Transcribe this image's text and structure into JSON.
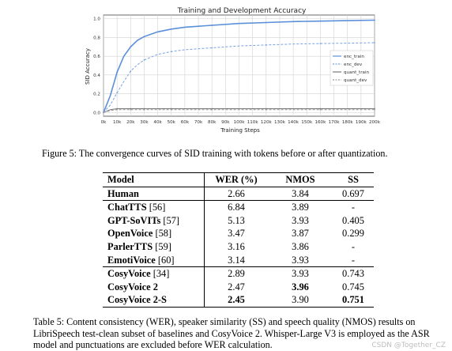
{
  "figure": {
    "caption": "Figure 5: The convergence curves of SID training with tokens before or after quantization."
  },
  "chart_data": {
    "type": "line",
    "title": "Training and Development Accuracy",
    "xlabel": "Training Steps",
    "ylabel": "SID Accuracy",
    "xlim": [
      0,
      200000
    ],
    "ylim": [
      -0.04,
      1.04
    ],
    "x_ticks": [
      "0k",
      "10k",
      "20k",
      "30k",
      "40k",
      "50k",
      "60k",
      "70k",
      "80k",
      "90k",
      "100k",
      "110k",
      "120k",
      "130k",
      "140k",
      "150k",
      "160k",
      "170k",
      "180k",
      "190k",
      "200k"
    ],
    "y_ticks": [
      "0.0",
      "0.2",
      "0.4",
      "0.6",
      "0.8",
      "1.0"
    ],
    "grid": true,
    "legend_position": "center-right",
    "x": [
      0,
      5000,
      10000,
      15000,
      20000,
      25000,
      30000,
      40000,
      50000,
      60000,
      80000,
      100000,
      120000,
      140000,
      160000,
      180000,
      200000
    ],
    "series": [
      {
        "name": "enc_train",
        "color": "#5b8fd9",
        "style": "solid",
        "values": [
          0.0,
          0.18,
          0.43,
          0.6,
          0.7,
          0.77,
          0.81,
          0.86,
          0.89,
          0.91,
          0.93,
          0.95,
          0.96,
          0.97,
          0.975,
          0.98,
          0.985
        ]
      },
      {
        "name": "enc_dev",
        "color": "#7aa3e0",
        "style": "dashed",
        "values": [
          0.0,
          0.08,
          0.21,
          0.33,
          0.44,
          0.51,
          0.56,
          0.62,
          0.65,
          0.67,
          0.69,
          0.71,
          0.72,
          0.73,
          0.735,
          0.74,
          0.745
        ]
      },
      {
        "name": "quant_train",
        "color": "#777777",
        "style": "solid",
        "values": [
          0.0,
          0.03,
          0.04,
          0.04,
          0.04,
          0.04,
          0.04,
          0.04,
          0.04,
          0.04,
          0.04,
          0.04,
          0.04,
          0.04,
          0.04,
          0.04,
          0.04
        ]
      },
      {
        "name": "quant_dev",
        "color": "#9a9a9a",
        "style": "dashed",
        "values": [
          0.0,
          0.02,
          0.03,
          0.03,
          0.03,
          0.03,
          0.03,
          0.03,
          0.03,
          0.03,
          0.03,
          0.03,
          0.03,
          0.03,
          0.03,
          0.03,
          0.03
        ]
      }
    ]
  },
  "table": {
    "headers": {
      "model": "Model",
      "wer": "WER (%)",
      "nmos": "NMOS",
      "ss": "SS"
    },
    "human": {
      "model": "Human",
      "wer": "2.66",
      "nmos": "3.84",
      "ss": "0.697"
    },
    "baselines": [
      {
        "model": "ChatTTS",
        "ref": "[56]",
        "wer": "6.84",
        "nmos": "3.89",
        "ss": "-"
      },
      {
        "model": "GPT-SoVITs",
        "ref": "[57]",
        "wer": "5.13",
        "nmos": "3.93",
        "ss": "0.405"
      },
      {
        "model": "OpenVoice",
        "ref": "[58]",
        "wer": "3.47",
        "nmos": "3.87",
        "ss": "0.299"
      },
      {
        "model": "ParlerTTS",
        "ref": "[59]",
        "wer": "3.16",
        "nmos": "3.86",
        "ss": "-"
      },
      {
        "model": "EmotiVoice",
        "ref": "[60]",
        "wer": "3.14",
        "nmos": "3.93",
        "ss": "-"
      }
    ],
    "cosy": [
      {
        "model": "CosyVoice",
        "ref": "[34]",
        "wer": "2.89",
        "nmos": "3.93",
        "ss": "0.743"
      },
      {
        "model": "CosyVoice 2",
        "ref": "",
        "wer": "2.47",
        "nmos": "3.96",
        "ss": "0.745"
      },
      {
        "model": "CosyVoice 2-S",
        "ref": "",
        "wer": "2.45",
        "nmos": "3.90",
        "ss": "0.751"
      }
    ],
    "caption": "Table 5: Content consistency (WER), speaker similarity (SS) and speech quality (NMOS) results on LibriSpeech test-clean subset of baselines and CosyVoice 2. Whisper-Large V3 is employed as the ASR model and punctuations are excluded before WER calculation."
  },
  "watermark": "CSDN @Together_CZ"
}
